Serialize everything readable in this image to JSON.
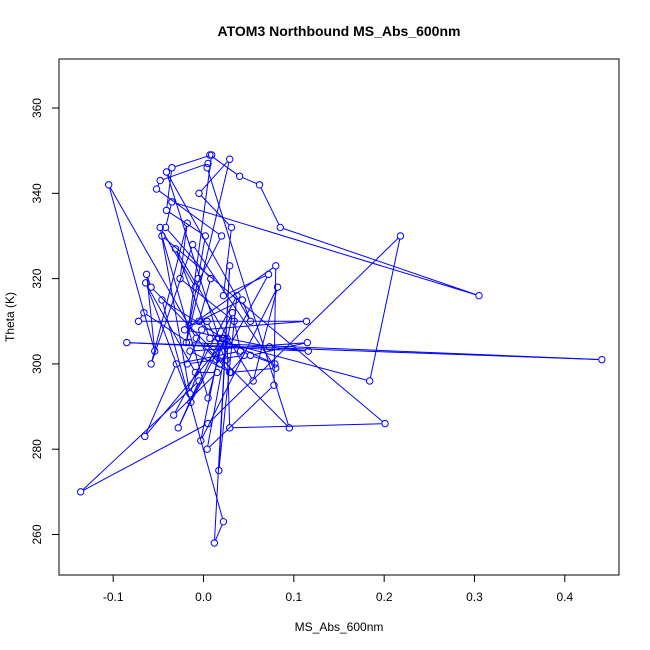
{
  "chart_data": {
    "type": "line",
    "title": "ATOM3 Northbound MS_Abs_600nm",
    "xlabel": "MS_Abs_600nm",
    "ylabel": "Theta (K)",
    "xlim": [
      -0.16,
      0.46
    ],
    "ylim": [
      250.5,
      371.5
    ],
    "xticks": [
      -0.1,
      0.0,
      0.1,
      0.2,
      0.3,
      0.4
    ],
    "xtick_labels": [
      "-0.1",
      "0.0",
      "0.1",
      "0.2",
      "0.3",
      "0.4"
    ],
    "yticks": [
      260,
      280,
      300,
      320,
      340,
      360
    ],
    "ytick_labels": [
      "260",
      "280",
      "300",
      "320",
      "340",
      "360"
    ],
    "grid": false,
    "legend": "none",
    "marker": "open-circle",
    "color": "#0000ff",
    "series": [
      {
        "x": [
          0.007,
          0.04,
          0.062,
          0.085,
          0.305,
          -0.035,
          -0.042,
          0.008,
          -0.005,
          0.043,
          0.052,
          -0.041,
          0.017,
          0.079,
          0.052,
          0.115,
          -0.015,
          0.03,
          0.08,
          -0.012,
          -0.058,
          -0.018,
          -0.026,
          0.034,
          0.041,
          -0.03,
          -0.065,
          0.026,
          0.029,
          0.201,
          -0.046,
          0.005,
          0.022,
          -0.046,
          0.022,
          0.012,
          0.029,
          0.017,
          0.037,
          -0.033,
          0.015,
          -0.009,
          -0.064,
          -0.014,
          0.018,
          -0.003,
          0.082,
          0.055,
          -0.031,
          0.007,
          0.184,
          0.218,
          0.005,
          -0.136,
          -0.005,
          -0.028,
          0.032,
          0.004,
          0.078,
          0.08,
          -0.021,
          0.073,
          0.116,
          -0.085,
          0.441,
          -0.016,
          -0.066,
          -0.072,
          0.114,
          -0.002,
          -0.018,
          0.014,
          0.045,
          0.029,
          0.003,
          -0.015,
          -0.048,
          -0.009,
          0.02,
          -0.052,
          -0.048,
          0.005,
          0.004,
          0.095,
          -0.058,
          -0.063,
          -0.054,
          -0.105,
          -0.008,
          0.018,
          0.072,
          0.022,
          0.031,
          -0.005,
          0.029,
          -0.019,
          0.009,
          -0.035,
          -0.041,
          0.002,
          -0.006,
          -0.016,
          0.004,
          0.025,
          0.021
        ],
        "y": [
          349,
          344,
          342,
          332,
          316,
          338,
          332,
          320,
          310,
          315,
          310,
          345,
          306,
          300,
          302,
          305,
          303,
          298,
          299,
          328,
          300,
          333,
          320,
          310,
          303,
          300,
          283,
          306,
          285,
          286,
          330,
          292,
          306,
          315,
          263,
          258,
          323,
          275,
          316,
          288,
          298,
          298,
          319,
          291,
          304,
          282,
          318,
          296,
          327,
          306,
          296,
          330,
          286,
          270,
          296,
          285,
          312,
          280,
          295,
          323,
          308,
          304,
          303,
          305,
          301,
          305,
          312,
          310,
          310,
          308,
          300,
          301,
          302,
          298,
          304,
          293,
          332,
          318,
          330,
          341,
          343,
          347,
          346,
          285,
          318,
          321,
          303,
          342,
          306,
          300,
          321,
          316,
          332,
          340,
          348,
          305,
          349,
          346,
          336,
          330,
          320,
          309,
          310,
          301,
          306
        ]
      }
    ]
  }
}
